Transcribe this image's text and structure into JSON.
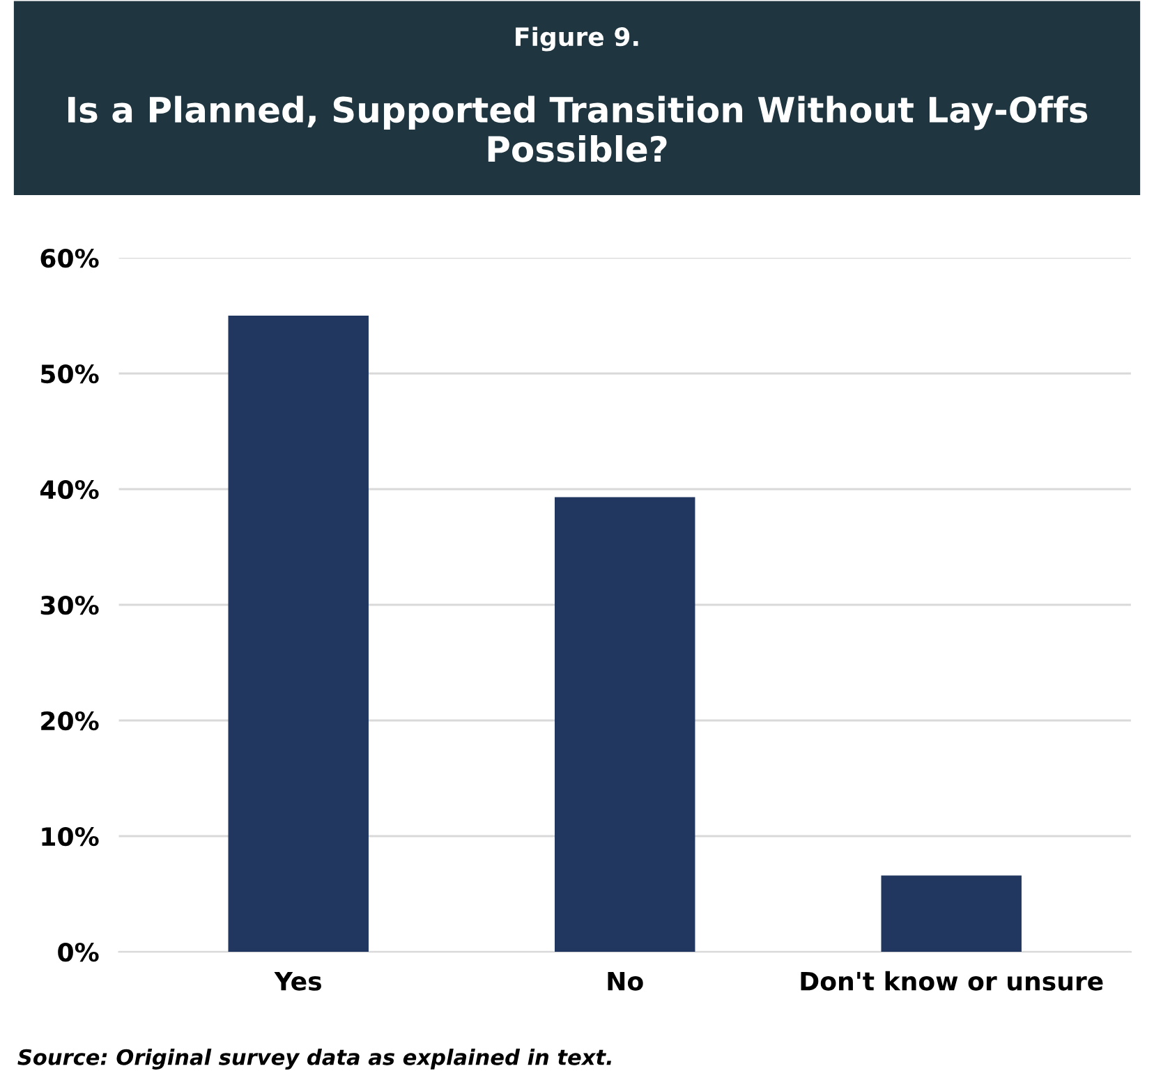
{
  "chart_data": {
    "type": "bar",
    "subtitle": "Figure 9.",
    "title": "Is a Planned, Supported Transition Without Lay-Offs Possible?",
    "categories": [
      "Yes",
      "No",
      "Don't know or unsure"
    ],
    "values": [
      55,
      39.3,
      6.6
    ],
    "color": "#21375f",
    "ylim": [
      0,
      60
    ],
    "yticks": [
      {
        "value": 0,
        "label": "0%"
      },
      {
        "value": 10,
        "label": "10%"
      },
      {
        "value": 20,
        "label": "20%"
      },
      {
        "value": 30,
        "label": "30%"
      },
      {
        "value": 40,
        "label": "40%"
      },
      {
        "value": 50,
        "label": "50%"
      },
      {
        "value": 60,
        "label": "60%"
      }
    ],
    "grid": "y",
    "annotations": [
      "Source: Original survey data as explained in text."
    ]
  }
}
